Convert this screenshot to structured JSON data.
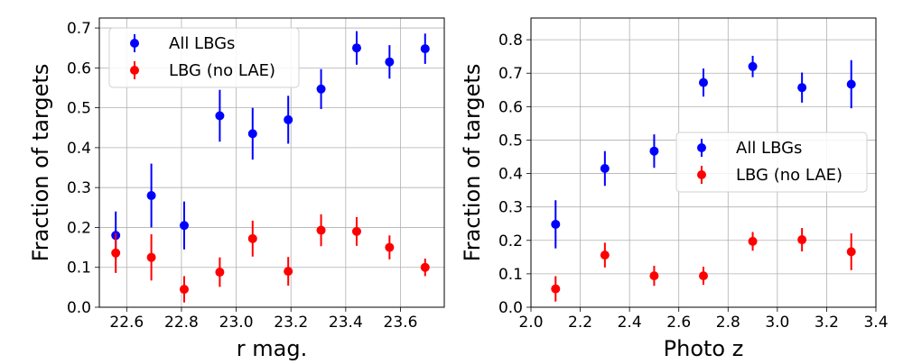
{
  "chart_data": [
    {
      "type": "scatter",
      "xlabel": "r mag.",
      "ylabel": "Fraction of targets",
      "xlim": [
        22.5,
        23.76
      ],
      "ylim": [
        0.0,
        0.725
      ],
      "xticks": [
        22.6,
        22.8,
        23.0,
        23.2,
        23.4,
        23.6
      ],
      "xtick_labels": [
        "22.6",
        "22.8",
        "23.0",
        "23.2",
        "23.4",
        "23.6"
      ],
      "yticks": [
        0.0,
        0.1,
        0.2,
        0.3,
        0.4,
        0.5,
        0.6,
        0.7
      ],
      "ytick_labels": [
        "0.0",
        "0.1",
        "0.2",
        "0.3",
        "0.4",
        "0.5",
        "0.6",
        "0.7"
      ],
      "grid": true,
      "legend_position": "top-left",
      "series": [
        {
          "name": "All LBGs",
          "color": "#0000ff",
          "x": [
            22.56,
            22.69,
            22.81,
            22.94,
            23.06,
            23.19,
            23.31,
            23.44,
            23.56,
            23.69
          ],
          "y": [
            0.18,
            0.28,
            0.205,
            0.48,
            0.435,
            0.47,
            0.547,
            0.65,
            0.615,
            0.648
          ],
          "yerr": [
            0.06,
            0.08,
            0.06,
            0.065,
            0.065,
            0.06,
            0.05,
            0.042,
            0.042,
            0.038
          ]
        },
        {
          "name": "LBG (no LAE)",
          "color": "#ff0000",
          "x": [
            22.56,
            22.69,
            22.81,
            22.94,
            23.06,
            23.19,
            23.31,
            23.44,
            23.56,
            23.69
          ],
          "y": [
            0.136,
            0.125,
            0.045,
            0.088,
            0.172,
            0.09,
            0.193,
            0.19,
            0.15,
            0.1
          ],
          "yerr": [
            0.05,
            0.058,
            0.033,
            0.037,
            0.045,
            0.036,
            0.04,
            0.036,
            0.03,
            0.022
          ]
        }
      ]
    },
    {
      "type": "scatter",
      "xlabel": "Photo z",
      "ylabel": "Fraction of targets",
      "xlim": [
        2.0,
        3.4
      ],
      "ylim": [
        0.0,
        0.865
      ],
      "xticks": [
        2.0,
        2.2,
        2.4,
        2.6,
        2.8,
        3.0,
        3.2,
        3.4
      ],
      "xtick_labels": [
        "2.0",
        "2.2",
        "2.4",
        "2.6",
        "2.8",
        "3.0",
        "3.2",
        "3.4"
      ],
      "yticks": [
        0.0,
        0.1,
        0.2,
        0.3,
        0.4,
        0.5,
        0.6,
        0.7,
        0.8
      ],
      "ytick_labels": [
        "0.0",
        "0.1",
        "0.2",
        "0.3",
        "0.4",
        "0.5",
        "0.6",
        "0.7",
        "0.8"
      ],
      "grid": true,
      "legend_position": "center-right",
      "series": [
        {
          "name": "All LBGs",
          "color": "#0000ff",
          "x": [
            2.1,
            2.3,
            2.5,
            2.7,
            2.9,
            3.1,
            3.3
          ],
          "y": [
            0.248,
            0.415,
            0.467,
            0.672,
            0.72,
            0.657,
            0.667
          ],
          "yerr": [
            0.072,
            0.052,
            0.05,
            0.042,
            0.032,
            0.045,
            0.072
          ]
        },
        {
          "name": "LBG (no LAE)",
          "color": "#ff0000",
          "x": [
            2.1,
            2.3,
            2.5,
            2.7,
            2.9,
            3.1,
            3.3
          ],
          "y": [
            0.055,
            0.156,
            0.094,
            0.094,
            0.197,
            0.202,
            0.166
          ],
          "yerr": [
            0.038,
            0.037,
            0.03,
            0.027,
            0.028,
            0.035,
            0.055
          ]
        }
      ]
    }
  ]
}
